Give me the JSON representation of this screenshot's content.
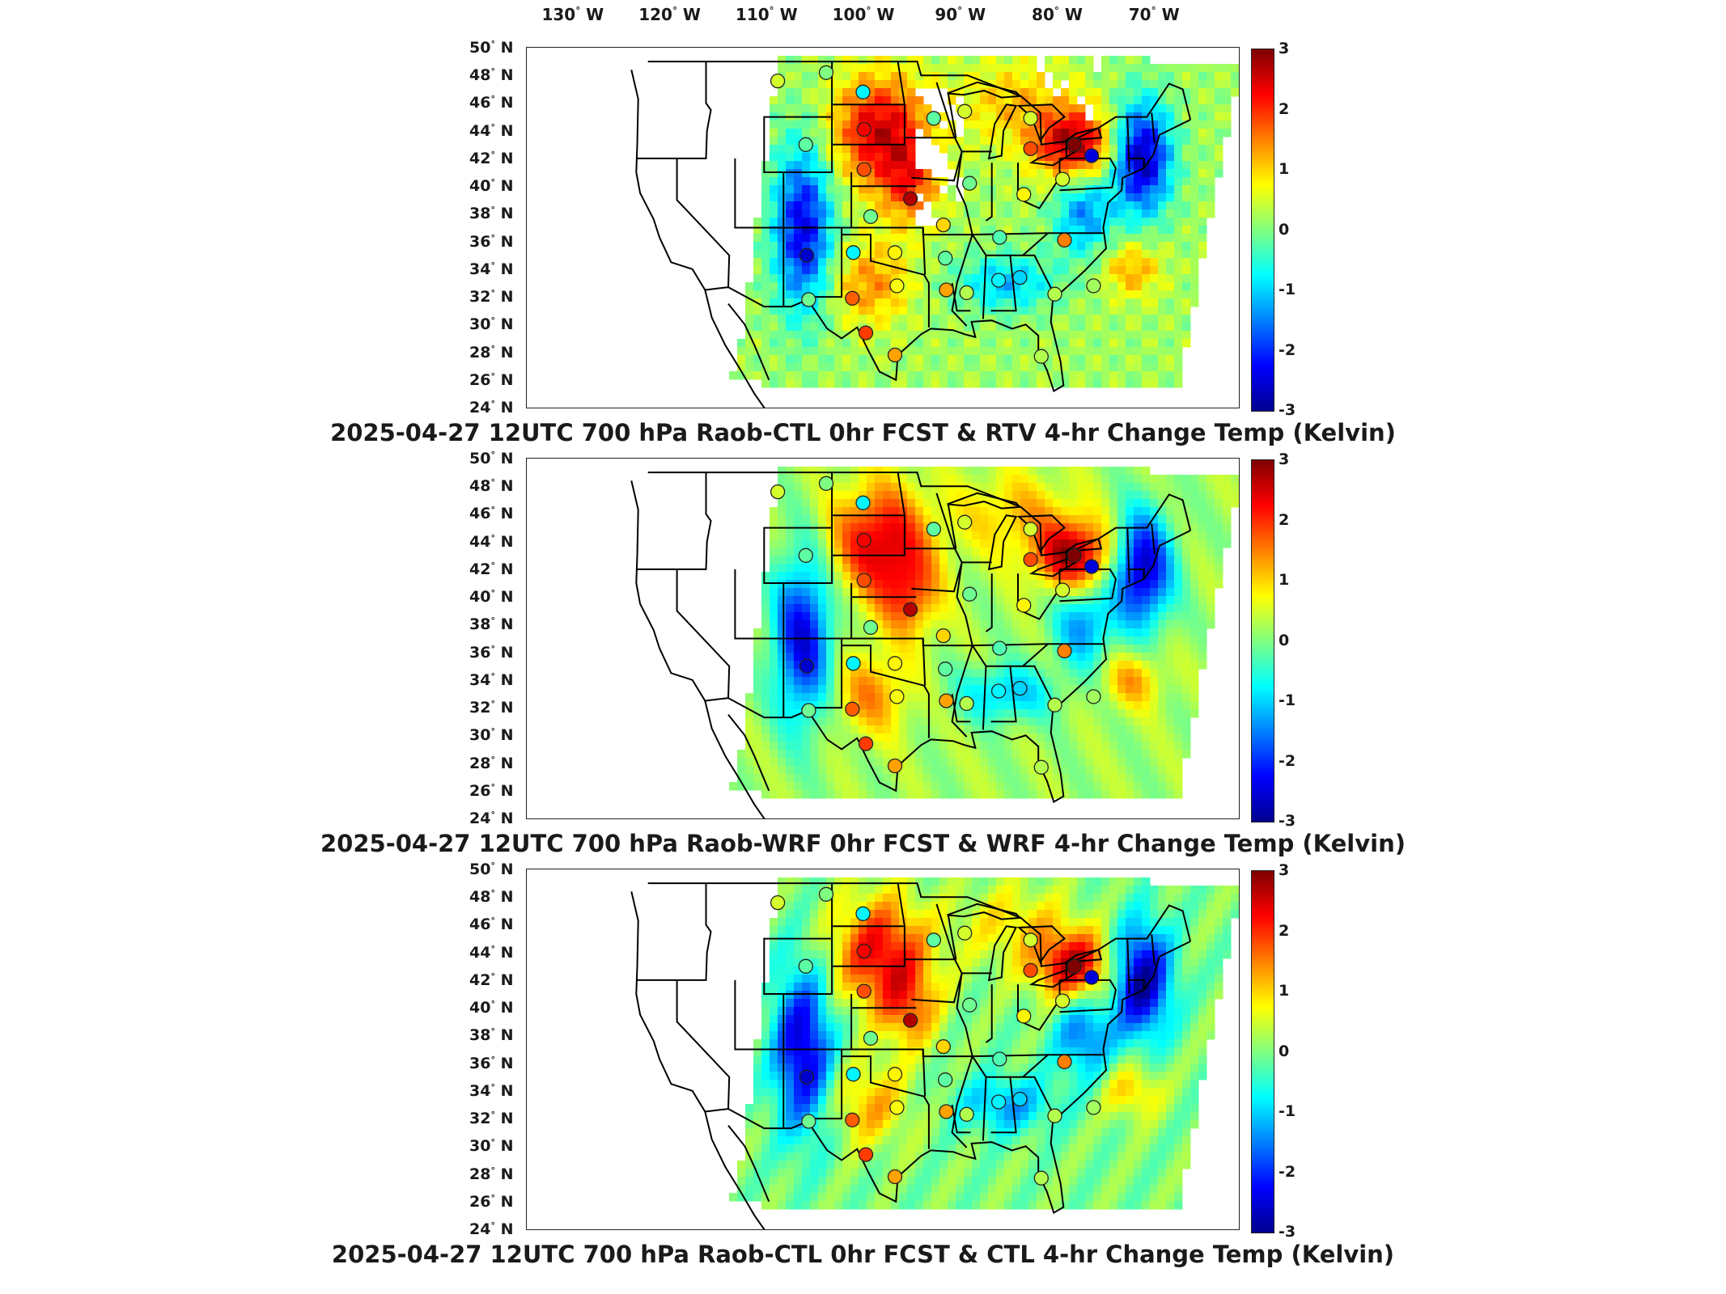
{
  "lon_labels": [
    {
      "deg": "130",
      "hemi": "W"
    },
    {
      "deg": "120",
      "hemi": "W"
    },
    {
      "deg": "110",
      "hemi": "W"
    },
    {
      "deg": "100",
      "hemi": "W"
    },
    {
      "deg": "90",
      "hemi": "W"
    },
    {
      "deg": "80",
      "hemi": "W"
    },
    {
      "deg": "70",
      "hemi": "W"
    }
  ],
  "lat_labels": [
    {
      "deg": "50",
      "hemi": "N"
    },
    {
      "deg": "48",
      "hemi": "N"
    },
    {
      "deg": "46",
      "hemi": "N"
    },
    {
      "deg": "44",
      "hemi": "N"
    },
    {
      "deg": "42",
      "hemi": "N"
    },
    {
      "deg": "40",
      "hemi": "N"
    },
    {
      "deg": "38",
      "hemi": "N"
    },
    {
      "deg": "36",
      "hemi": "N"
    },
    {
      "deg": "34",
      "hemi": "N"
    },
    {
      "deg": "32",
      "hemi": "N"
    },
    {
      "deg": "30",
      "hemi": "N"
    },
    {
      "deg": "28",
      "hemi": "N"
    },
    {
      "deg": "26",
      "hemi": "N"
    },
    {
      "deg": "24",
      "hemi": "N"
    }
  ],
  "colorbar": {
    "ticks": [
      "3",
      "2",
      "1",
      "0",
      "-1",
      "-2",
      "-3"
    ],
    "stops": [
      "#7f0000",
      "#ff0000",
      "#ff8000",
      "#ffff00",
      "#80ff80",
      "#00ffff",
      "#0080ff",
      "#0000ff",
      "#00008f"
    ]
  },
  "panels": [
    {
      "title": "2025-04-27 12UTC 700 hPa Raob-CTL 0hr FCST & RTV 4-hr Change Temp (Kelvin)",
      "field": "RTV"
    },
    {
      "title": "2025-04-27 12UTC 700 hPa Raob-WRF 0hr FCST & WRF 4-hr Change Temp (Kelvin)",
      "field": "WRF"
    },
    {
      "title": "2025-04-27 12UTC 700 hPa Raob-CTL 0hr FCST & CTL 4-hr Change Temp (Kelvin)",
      "field": "CTL"
    }
  ],
  "raob_stations": [
    {
      "lon": -109.6,
      "lat": 47.6,
      "v": 0.5
    },
    {
      "lon": -104.6,
      "lat": 48.2,
      "v": 0.0
    },
    {
      "lon": -100.8,
      "lat": 46.8,
      "v": -0.8
    },
    {
      "lon": -106.7,
      "lat": 43.0,
      "v": -0.2
    },
    {
      "lon": -100.7,
      "lat": 44.1,
      "v": 2.3
    },
    {
      "lon": -93.5,
      "lat": 44.9,
      "v": -0.2
    },
    {
      "lon": -100.7,
      "lat": 41.2,
      "v": 1.8
    },
    {
      "lon": -95.9,
      "lat": 39.1,
      "v": 2.7
    },
    {
      "lon": -100.0,
      "lat": 37.8,
      "v": -0.1
    },
    {
      "lon": -92.5,
      "lat": 37.2,
      "v": 1.0
    },
    {
      "lon": -89.8,
      "lat": 40.2,
      "v": -0.1
    },
    {
      "lon": -90.3,
      "lat": 45.4,
      "v": 0.5
    },
    {
      "lon": -83.5,
      "lat": 44.9,
      "v": 0.5
    },
    {
      "lon": -83.5,
      "lat": 42.7,
      "v": 1.8
    },
    {
      "lon": -79.0,
      "lat": 43.0,
      "v": 3.0
    },
    {
      "lon": -77.2,
      "lat": 42.2,
      "v": -2.5
    },
    {
      "lon": -80.2,
      "lat": 40.5,
      "v": 0.5
    },
    {
      "lon": -84.2,
      "lat": 39.4,
      "v": 0.8
    },
    {
      "lon": -86.7,
      "lat": 36.3,
      "v": -0.3
    },
    {
      "lon": -80.0,
      "lat": 36.1,
      "v": 1.5
    },
    {
      "lon": -77.0,
      "lat": 32.8,
      "v": 0.2
    },
    {
      "lon": -81.0,
      "lat": 32.2,
      "v": 0.3
    },
    {
      "lon": -84.6,
      "lat": 33.4,
      "v": -1.0
    },
    {
      "lon": -86.8,
      "lat": 33.2,
      "v": -0.8
    },
    {
      "lon": -90.1,
      "lat": 32.3,
      "v": 0.3
    },
    {
      "lon": -92.2,
      "lat": 32.5,
      "v": 1.3
    },
    {
      "lon": -97.3,
      "lat": 32.8,
      "v": 0.7
    },
    {
      "lon": -97.5,
      "lat": 35.2,
      "v": 0.8
    },
    {
      "lon": -92.3,
      "lat": 34.8,
      "v": -0.2
    },
    {
      "lon": -101.8,
      "lat": 35.2,
      "v": -0.8
    },
    {
      "lon": -106.6,
      "lat": 35.0,
      "v": -2.6
    },
    {
      "lon": -101.9,
      "lat": 31.9,
      "v": 1.7
    },
    {
      "lon": -97.5,
      "lat": 27.8,
      "v": 1.3
    },
    {
      "lon": -100.5,
      "lat": 29.4,
      "v": 1.9
    },
    {
      "lon": -82.4,
      "lat": 27.7,
      "v": 0.3
    },
    {
      "lon": -106.4,
      "lat": 31.8,
      "v": -0.1
    }
  ]
}
